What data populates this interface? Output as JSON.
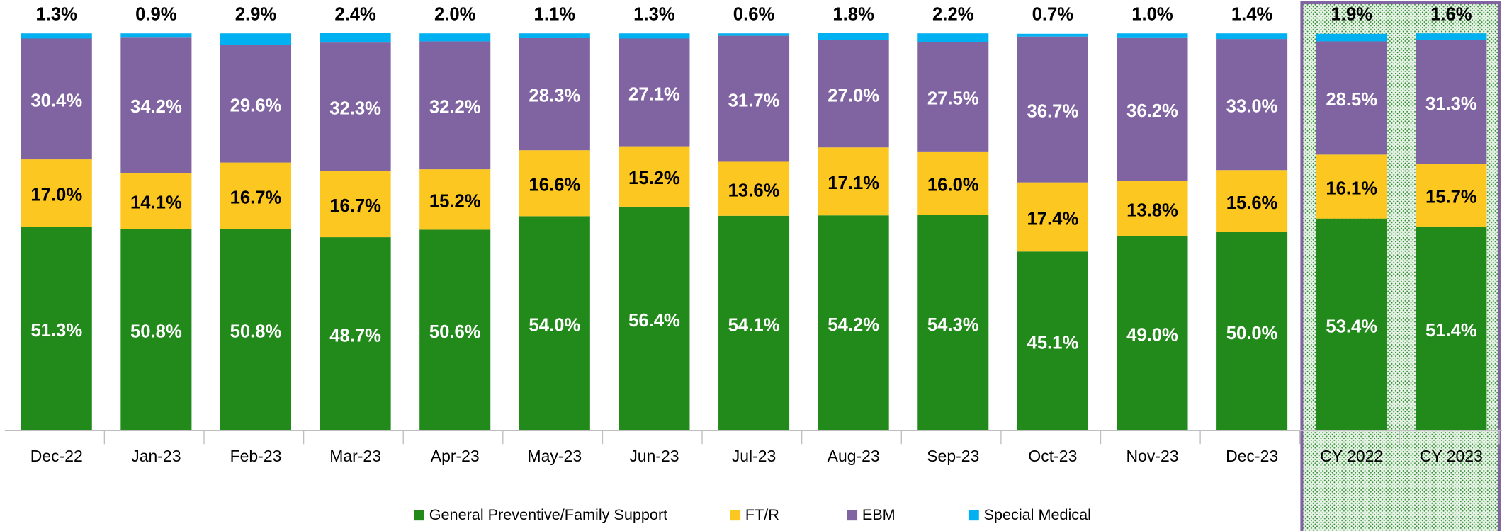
{
  "chart_data": {
    "type": "stacked_bar",
    "categories": [
      "Dec-22",
      "Jan-23",
      "Feb-23",
      "Mar-23",
      "Apr-23",
      "May-23",
      "Jun-23",
      "Jul-23",
      "Aug-23",
      "Sep-23",
      "Oct-23",
      "Nov-23",
      "Dec-23",
      "CY 2022",
      "CY 2023"
    ],
    "ylim": [
      0,
      100
    ],
    "series": [
      {
        "name": "General Preventive/Family Support",
        "color": "#228a1b",
        "values": [
          51.3,
          50.8,
          50.8,
          48.7,
          50.6,
          54.0,
          56.4,
          54.1,
          54.2,
          54.3,
          45.1,
          49.0,
          50.0,
          53.4,
          51.4
        ],
        "value_labels": [
          "51.3%",
          "50.8%",
          "50.8%",
          "48.7%",
          "50.6%",
          "54.0%",
          "56.4%",
          "54.1%",
          "54.2%",
          "54.3%",
          "45.1%",
          "49.0%",
          "50.0%",
          "53.4%",
          "51.4%"
        ]
      },
      {
        "name": "FT/R",
        "color": "#fcc721",
        "values": [
          17.0,
          14.1,
          16.7,
          16.7,
          15.2,
          16.6,
          15.2,
          13.6,
          17.1,
          16.0,
          17.4,
          13.8,
          15.6,
          16.1,
          15.7
        ],
        "value_labels": [
          "17.0%",
          "14.1%",
          "16.7%",
          "16.7%",
          "15.2%",
          "16.6%",
          "15.2%",
          "13.6%",
          "17.1%",
          "16.0%",
          "17.4%",
          "13.8%",
          "15.6%",
          "16.1%",
          "15.7%"
        ]
      },
      {
        "name": "EBM",
        "color": "#8064a2",
        "values": [
          30.4,
          34.2,
          29.6,
          32.3,
          32.2,
          28.3,
          27.1,
          31.7,
          27.0,
          27.5,
          36.7,
          36.2,
          33.0,
          28.5,
          31.3
        ],
        "value_labels": [
          "30.4%",
          "34.2%",
          "29.6%",
          "32.3%",
          "32.2%",
          "28.3%",
          "27.1%",
          "31.7%",
          "27.0%",
          "27.5%",
          "36.7%",
          "36.2%",
          "33.0%",
          "28.5%",
          "31.3%"
        ]
      },
      {
        "name": "Special Medical",
        "color": "#00b0f0",
        "values": [
          1.3,
          0.9,
          2.9,
          2.4,
          2.0,
          1.1,
          1.3,
          0.6,
          1.8,
          2.2,
          0.7,
          1.0,
          1.4,
          1.9,
          1.6
        ],
        "value_labels": [
          "1.3%",
          "0.9%",
          "2.9%",
          "2.4%",
          "2.0%",
          "1.1%",
          "1.3%",
          "0.6%",
          "1.8%",
          "2.2%",
          "0.7%",
          "1.0%",
          "1.4%",
          "1.9%",
          "1.6%"
        ]
      }
    ]
  }
}
